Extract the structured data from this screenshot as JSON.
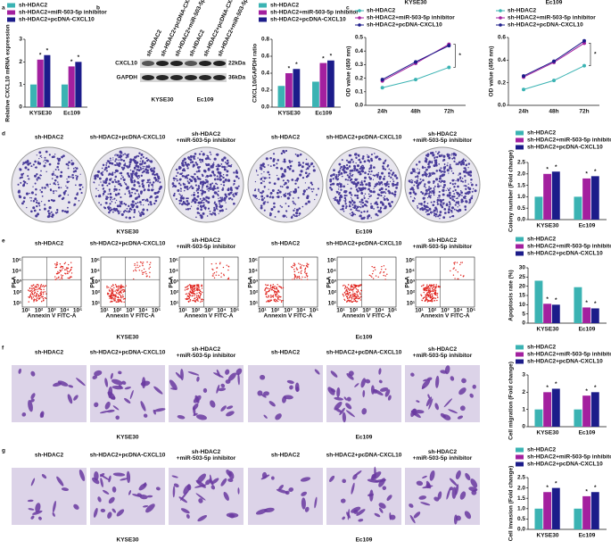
{
  "panel_labels": [
    "a",
    "b",
    "c",
    "d",
    "e",
    "f",
    "g"
  ],
  "blot": {
    "lanes": [
      "sh-HDAC2",
      "sh-HDAC2+pcDNA-CXCL10",
      "sh-HDAC2+miR-503-5p inhibitor",
      "sh-HDAC2",
      "sh-HDAC2+pcDNA-CXCL10",
      "sh-HDAC2+miR-503-5p inhibitor"
    ],
    "proteins": [
      "CXCL10",
      "GAPDH"
    ],
    "sizes": [
      "22kDa",
      "36kDa"
    ],
    "groups": [
      "KYSE30",
      "Ec109"
    ]
  },
  "image_rows": {
    "titles": [
      [
        "sh-HDAC2"
      ],
      [
        "sh-HDAC2+pcDNA-CXCL10"
      ],
      [
        "sh-HDAC2",
        "+miR-503-5p inhibitor"
      ]
    ],
    "groups": [
      "KYSE30",
      "Ec109"
    ]
  },
  "flow": {
    "y_label": "PI-A",
    "x_label": "Annexin V FITC-A",
    "ticks": [
      "10¹",
      "10²",
      "10³",
      "10⁴",
      "10⁵"
    ]
  },
  "chart_data": [
    {
      "type": "bar",
      "y_label": "Relative CXCL10 mRNA expression",
      "categories": [
        "KYSE30",
        "Ec109"
      ],
      "marker": "*",
      "ylim": [
        0,
        3
      ],
      "yticks": [
        0,
        1,
        2,
        3
      ],
      "series": [
        {
          "name": "sh-HDAC2",
          "color": "#3bb3b3",
          "values": [
            1.0,
            1.0
          ]
        },
        {
          "name": "sh-HDAC2+miR-503-5p inhibitor",
          "color": "#a3209f",
          "values": [
            2.1,
            1.8
          ]
        },
        {
          "name": "sh-HDAC2+pcDNA-CXCL10",
          "color": "#1c1c8a",
          "values": [
            2.3,
            2.0
          ]
        }
      ]
    },
    {
      "type": "bar",
      "y_label": "CXCL10/GAPDH ratio",
      "categories": [
        "KYSE30",
        "Ec109"
      ],
      "marker": "*",
      "ylim": [
        0,
        0.8
      ],
      "yticks": [
        {
          "value": 0,
          "label": "0.0"
        },
        0.2,
        0.4,
        0.6,
        0.8
      ],
      "series": [
        {
          "name": "sh-HDAC2",
          "color": "#3bb3b3",
          "values": [
            0.25,
            0.3
          ]
        },
        {
          "name": "sh-HDAC2+miR-503-5p inhibitor",
          "color": "#a3209f",
          "values": [
            0.4,
            0.52
          ]
        },
        {
          "name": "sh-HDAC2+pcDNA-CXCL10",
          "color": "#1c1c8a",
          "values": [
            0.45,
            0.55
          ]
        }
      ]
    },
    {
      "type": "line",
      "title": "KYSE30",
      "y_label": "OD value (450 nm)",
      "categories": [
        "24h",
        "48h",
        "72h"
      ],
      "marker": "*",
      "ylim": [
        0,
        0.5
      ],
      "yticks": [
        {
          "value": 0,
          "label": "0.0"
        },
        0.1,
        0.2,
        0.3,
        0.4,
        0.5
      ],
      "series": [
        {
          "name": "sh-HDAC2",
          "color": "#3bb3b3",
          "values": [
            0.13,
            0.19,
            0.28
          ]
        },
        {
          "name": "sh-HDAC2+miR-503-5p inhibitor",
          "color": "#a3209f",
          "values": [
            0.18,
            0.31,
            0.45
          ]
        },
        {
          "name": "sh-HDAC2+pcDNA-CXCL10",
          "color": "#1c1c8a",
          "values": [
            0.19,
            0.32,
            0.44
          ]
        }
      ]
    },
    {
      "type": "line",
      "title": "Ec109",
      "y_label": "OD value (450 nm)",
      "categories": [
        "24h",
        "48h",
        "72h"
      ],
      "marker": "*",
      "ylim": [
        0,
        0.6
      ],
      "yticks": [
        {
          "value": 0,
          "label": "0.0"
        },
        0.2,
        0.4,
        0.6
      ],
      "series": [
        {
          "name": "sh-HDAC2",
          "color": "#3bb3b3",
          "values": [
            0.14,
            0.22,
            0.35
          ]
        },
        {
          "name": "sh-HDAC2+miR-503-5p inhibitor",
          "color": "#a3209f",
          "values": [
            0.25,
            0.38,
            0.55
          ]
        },
        {
          "name": "sh-HDAC2+pcDNA-CXCL10",
          "color": "#1c1c8a",
          "values": [
            0.26,
            0.39,
            0.57
          ]
        }
      ]
    },
    {
      "type": "bar",
      "y_label": "Colony number (Fold change)",
      "categories": [
        "KYSE30",
        "Ec109"
      ],
      "marker": "*",
      "ylim": [
        0,
        2.5
      ],
      "yticks": [
        {
          "value": 0,
          "label": "0.0"
        },
        0.5,
        {
          "value": 1,
          "label": "1.0"
        },
        1.5,
        {
          "value": 2,
          "label": "2.0"
        },
        2.5
      ],
      "series": [
        {
          "name": "sh-HDAC2",
          "color": "#3bb3b3",
          "values": [
            1.0,
            1.0
          ]
        },
        {
          "name": "sh-HDAC2+miR-503-5p inhibitor",
          "color": "#a3209f",
          "values": [
            2.0,
            1.8
          ]
        },
        {
          "name": "sh-HDAC2+pcDNA-CXCL10",
          "color": "#1c1c8a",
          "values": [
            2.1,
            1.9
          ]
        }
      ]
    },
    {
      "type": "bar",
      "y_label": "Apoptosis rate (%)",
      "categories": [
        "KYSE30",
        "Ec109"
      ],
      "marker": "*",
      "ylim": [
        0,
        30
      ],
      "yticks": [
        0,
        5,
        10,
        15,
        20,
        25,
        30
      ],
      "series": [
        {
          "name": "sh-HDAC2",
          "color": "#3bb3b3",
          "values": [
            23,
            19.5
          ]
        },
        {
          "name": "sh-HDAC2+miR-503-5p inhibitor",
          "color": "#a3209f",
          "values": [
            10.5,
            8.5
          ]
        },
        {
          "name": "sh-HDAC2+pcDNA-CXCL10",
          "color": "#1c1c8a",
          "values": [
            10,
            8
          ]
        }
      ]
    },
    {
      "type": "bar",
      "y_label": "Cell migration (Fold change)",
      "categories": [
        "KYSE30",
        "Ec109"
      ],
      "marker": "*",
      "ylim": [
        0,
        3
      ],
      "yticks": [
        0,
        1,
        2,
        3
      ],
      "series": [
        {
          "name": "sh-HDAC2",
          "color": "#3bb3b3",
          "values": [
            1.0,
            1.0
          ]
        },
        {
          "name": "sh-HDAC2+miR-503-5p inhibitor",
          "color": "#a3209f",
          "values": [
            2.0,
            1.8
          ]
        },
        {
          "name": "sh-HDAC2+pcDNA-CXCL10",
          "color": "#1c1c8a",
          "values": [
            2.2,
            2.0
          ]
        }
      ]
    },
    {
      "type": "bar",
      "y_label": "Cell invasion (Fold change)",
      "categories": [
        "KYSE30",
        "Ec109"
      ],
      "marker": "*",
      "ylim": [
        0,
        2.5
      ],
      "yticks": [
        {
          "value": 0,
          "label": "0.0"
        },
        0.5,
        {
          "value": 1,
          "label": "1.0"
        },
        1.5,
        {
          "value": 2,
          "label": "2.0"
        },
        2.5
      ],
      "series": [
        {
          "name": "sh-HDAC2",
          "color": "#3bb3b3",
          "values": [
            1.0,
            1.0
          ]
        },
        {
          "name": "sh-HDAC2+miR-503-5p inhibitor",
          "color": "#a3209f",
          "values": [
            1.8,
            1.6
          ]
        },
        {
          "name": "sh-HDAC2+pcDNA-CXCL10",
          "color": "#1c1c8a",
          "values": [
            2.0,
            1.8
          ]
        }
      ]
    }
  ]
}
